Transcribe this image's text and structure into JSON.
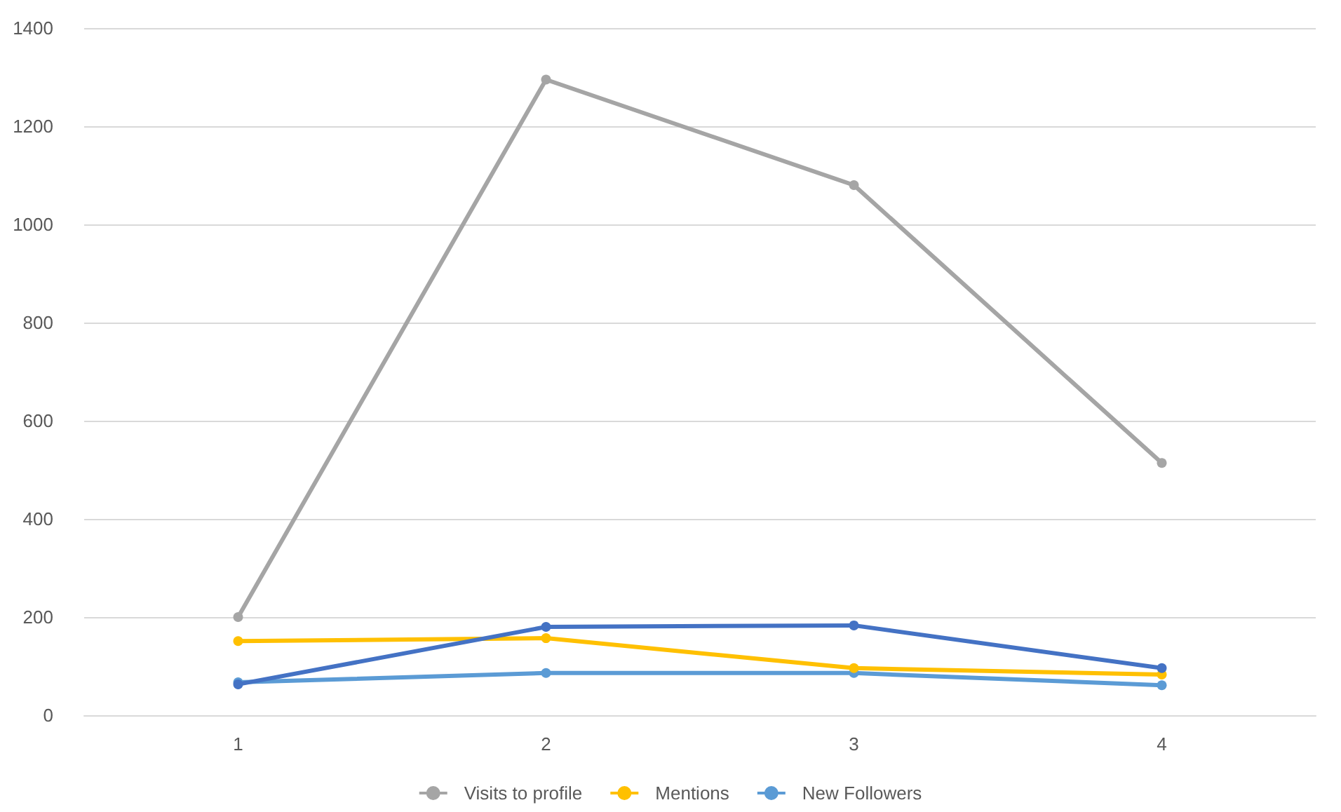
{
  "chart_data": {
    "type": "line",
    "categories": [
      "1",
      "2",
      "3",
      "4"
    ],
    "series": [
      {
        "color": "#4472c4",
        "values": [
          63,
          180,
          183,
          96
        ]
      },
      {
        "name": "Visits to profile",
        "color": "#a5a5a5",
        "values": [
          200,
          1295,
          1080,
          514
        ]
      },
      {
        "name": "Mentions",
        "color": "#ffc000",
        "values": [
          151,
          157,
          96,
          83
        ]
      },
      {
        "name": "New Followers",
        "color": "#5b9bd5",
        "values": [
          67,
          86,
          86,
          61
        ]
      }
    ],
    "ylim": [
      0,
      1400
    ],
    "yticks": [
      0,
      200,
      400,
      600,
      800,
      1000,
      1200,
      1400
    ],
    "grid": "y",
    "legend": "bottom",
    "marker": "circle",
    "line_style": "solid"
  }
}
